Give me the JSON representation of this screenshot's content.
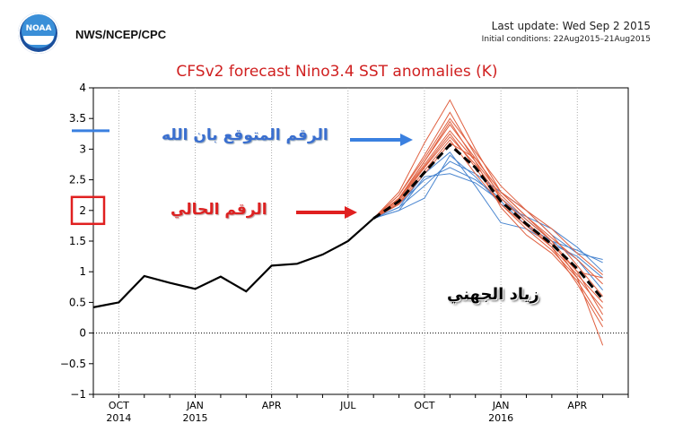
{
  "header": {
    "agency": "NWS/NCEP/CPC",
    "logo_text": "NOAA",
    "last_update": "Last update: Wed Sep 2 2015",
    "initial_conditions": "Initial conditions: 22Aug2015–21Aug2015"
  },
  "annotations": {
    "expected": "الرقم المتوقع بان الله",
    "current": "الرقم الحالي",
    "signature": "زياد الجهني"
  },
  "colors": {
    "title": "#d02020",
    "observed": "#000000",
    "ensemble_red": "#e06040",
    "ensemble_blue": "#4a86d0",
    "annotation_red": "#e02020",
    "annotation_blue": "#3a80e0"
  },
  "chart_data": {
    "type": "line",
    "title": "CFSv2 forecast Nino3.4 SST anomalies (K)",
    "xlabel": "",
    "ylabel": "",
    "xlim": [
      0,
      21
    ],
    "ylim": [
      -1,
      4
    ],
    "yticks": [
      -1,
      -0.5,
      0,
      0.5,
      1,
      1.5,
      2,
      2.5,
      3,
      3.5,
      4
    ],
    "ytick_labels": [
      "−1",
      "−0.5",
      "0",
      "0.5",
      "1",
      "1.5",
      "2",
      "2.5",
      "3",
      "3.5",
      "4"
    ],
    "xticks": [
      {
        "x": 1,
        "label": "OCT",
        "year": "2014"
      },
      {
        "x": 4,
        "label": "JAN",
        "year": "2015"
      },
      {
        "x": 7,
        "label": "APR",
        "year": ""
      },
      {
        "x": 10,
        "label": "JUL",
        "year": ""
      },
      {
        "x": 13,
        "label": "OCT",
        "year": ""
      },
      {
        "x": 16,
        "label": "JAN",
        "year": "2016"
      },
      {
        "x": 19,
        "label": "APR",
        "year": ""
      }
    ],
    "observed": {
      "x": [
        0,
        1,
        2,
        3,
        4,
        5,
        6,
        7,
        8,
        9,
        10,
        11
      ],
      "y": [
        0.42,
        0.5,
        0.93,
        0.82,
        0.72,
        0.92,
        0.68,
        1.1,
        1.13,
        1.28,
        1.5,
        1.87
      ]
    },
    "ensemble_mean": {
      "x": [
        11,
        12,
        13,
        14,
        15,
        16,
        17,
        18,
        19,
        20
      ],
      "y": [
        1.87,
        2.15,
        2.62,
        3.07,
        2.7,
        2.15,
        1.78,
        1.45,
        1.05,
        0.55
      ]
    },
    "members_red": [
      {
        "x": [
          11,
          12,
          13,
          14,
          15,
          16,
          17,
          18,
          19,
          20
        ],
        "y": [
          1.87,
          2.3,
          3.1,
          3.8,
          3.0,
          2.3,
          1.9,
          1.5,
          0.9,
          -0.2
        ]
      },
      {
        "x": [
          11,
          12,
          13,
          14,
          15,
          16,
          17,
          18,
          19,
          20
        ],
        "y": [
          1.87,
          2.25,
          2.9,
          3.6,
          2.9,
          2.2,
          1.8,
          1.4,
          0.8,
          0.1
        ]
      },
      {
        "x": [
          11,
          12,
          13,
          14,
          15,
          16,
          17,
          18,
          19,
          20
        ],
        "y": [
          1.87,
          2.2,
          2.8,
          3.4,
          2.85,
          2.3,
          2.0,
          1.6,
          1.1,
          0.6
        ]
      },
      {
        "x": [
          11,
          12,
          13,
          14,
          15,
          16,
          17,
          18,
          19,
          20
        ],
        "y": [
          1.87,
          2.2,
          2.75,
          3.3,
          2.8,
          2.25,
          1.85,
          1.5,
          1.0,
          0.3
        ]
      },
      {
        "x": [
          11,
          12,
          13,
          14,
          15,
          16,
          17,
          18,
          19,
          20
        ],
        "y": [
          1.87,
          2.15,
          2.7,
          3.2,
          2.75,
          2.2,
          1.8,
          1.45,
          1.0,
          0.9
        ]
      },
      {
        "x": [
          11,
          12,
          13,
          14,
          15,
          16,
          17,
          18,
          19,
          20
        ],
        "y": [
          1.87,
          2.18,
          2.72,
          3.25,
          2.7,
          2.1,
          1.75,
          1.4,
          0.95,
          0.5
        ]
      },
      {
        "x": [
          11,
          12,
          13,
          14,
          15,
          16,
          17,
          18,
          19,
          20
        ],
        "y": [
          1.87,
          2.1,
          2.6,
          3.1,
          2.85,
          2.3,
          1.9,
          1.55,
          1.2,
          0.8
        ]
      },
      {
        "x": [
          11,
          12,
          13,
          14,
          15,
          16,
          17,
          18,
          19,
          20
        ],
        "y": [
          1.87,
          2.12,
          2.65,
          3.15,
          2.6,
          2.1,
          1.7,
          1.35,
          0.9,
          0.4
        ]
      },
      {
        "x": [
          11,
          12,
          13,
          14,
          15,
          16,
          17,
          18,
          19,
          20
        ],
        "y": [
          1.87,
          2.25,
          2.85,
          3.5,
          2.95,
          2.4,
          2.0,
          1.7,
          1.3,
          0.95
        ]
      },
      {
        "x": [
          11,
          12,
          13,
          14,
          15,
          16,
          17,
          18,
          19,
          20
        ],
        "y": [
          1.87,
          2.2,
          2.8,
          3.45,
          2.8,
          2.05,
          1.6,
          1.3,
          0.85,
          0.2
        ]
      }
    ],
    "members_blue": [
      {
        "x": [
          11,
          12,
          13,
          14,
          15,
          16,
          17,
          18,
          19,
          20
        ],
        "y": [
          1.87,
          2.05,
          2.4,
          2.8,
          2.6,
          2.3,
          2.0,
          1.6,
          1.3,
          1.2
        ]
      },
      {
        "x": [
          11,
          12,
          13,
          14,
          15,
          16,
          17,
          18,
          19,
          20
        ],
        "y": [
          1.87,
          2.0,
          2.2,
          2.9,
          2.55,
          2.1,
          1.9,
          1.7,
          1.4,
          1.0
        ]
      },
      {
        "x": [
          11,
          12,
          13,
          14,
          15,
          16,
          17,
          18,
          19,
          20
        ],
        "y": [
          1.87,
          2.1,
          2.5,
          2.7,
          2.5,
          2.2,
          1.85,
          1.5,
          1.2,
          0.7
        ]
      },
      {
        "x": [
          11,
          12,
          13,
          14,
          15,
          16,
          17,
          18,
          19,
          20
        ],
        "y": [
          1.87,
          2.05,
          2.6,
          2.95,
          2.4,
          1.8,
          1.7,
          1.45,
          1.25,
          0.9
        ]
      },
      {
        "x": [
          11,
          12,
          13,
          14,
          15,
          16,
          17,
          18,
          19,
          20
        ],
        "y": [
          1.87,
          2.0,
          2.55,
          2.6,
          2.45,
          2.15,
          1.75,
          1.5,
          1.35,
          1.15
        ]
      }
    ],
    "legend_markers": [
      {
        "color": "#3a80e0",
        "y": 3.3
      },
      {
        "color": "#e02020",
        "y": 2.0
      }
    ]
  }
}
